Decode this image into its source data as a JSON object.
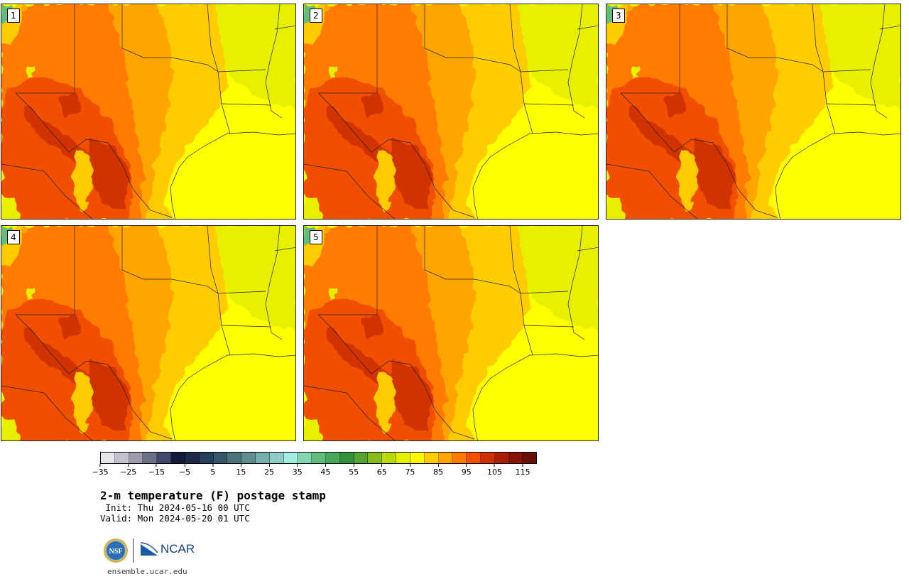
{
  "panels": [
    {
      "label": "1"
    },
    {
      "label": "2"
    },
    {
      "label": "3"
    },
    {
      "label": "4"
    },
    {
      "label": "5"
    }
  ],
  "colorbar": {
    "colors": [
      "#e6e6ea",
      "#c2c2cc",
      "#9c9cac",
      "#6d7086",
      "#44496a",
      "#131c36",
      "#1c2a4a",
      "#26405c",
      "#355868",
      "#4a7478",
      "#5f8d8e",
      "#76aeab",
      "#8fcdc4",
      "#a4ece0",
      "#82d7b0",
      "#62bd7c",
      "#47a85c",
      "#35903c",
      "#55a42e",
      "#86bc1c",
      "#bad80a",
      "#e4f000",
      "#fff700",
      "#ffcc00",
      "#ffa500",
      "#ff7b00",
      "#f05000",
      "#d03000",
      "#aa1e08",
      "#861406",
      "#661008"
    ],
    "ticks": [
      "−35",
      "−25",
      "−15",
      "−5",
      "5",
      "15",
      "25",
      "35",
      "45",
      "55",
      "65",
      "75",
      "85",
      "95",
      "105",
      "115"
    ]
  },
  "title": "2-m temperature (F) postage stamp",
  "init": " Init: Thu 2024-05-16 00 UTC",
  "valid": "Valid: Mon 2024-05-20 01 UTC",
  "logos": {
    "nsf": "NSF",
    "ncar": "NCAR",
    "nsf_icon": "nsf-logo-icon",
    "ncar_icon": "ncar-logo-icon"
  },
  "site": "ensemble.ucar.edu",
  "map_colors": {
    "yellow": "#ffff00",
    "yellow_green": "#e6f000",
    "amber": "#ffcc00",
    "orange": "#ffa500",
    "dark_orange": "#ff7b00",
    "red_orange": "#f05000",
    "red": "#d03000",
    "dark_red": "#aa1e08",
    "green": "#62bd7c"
  }
}
